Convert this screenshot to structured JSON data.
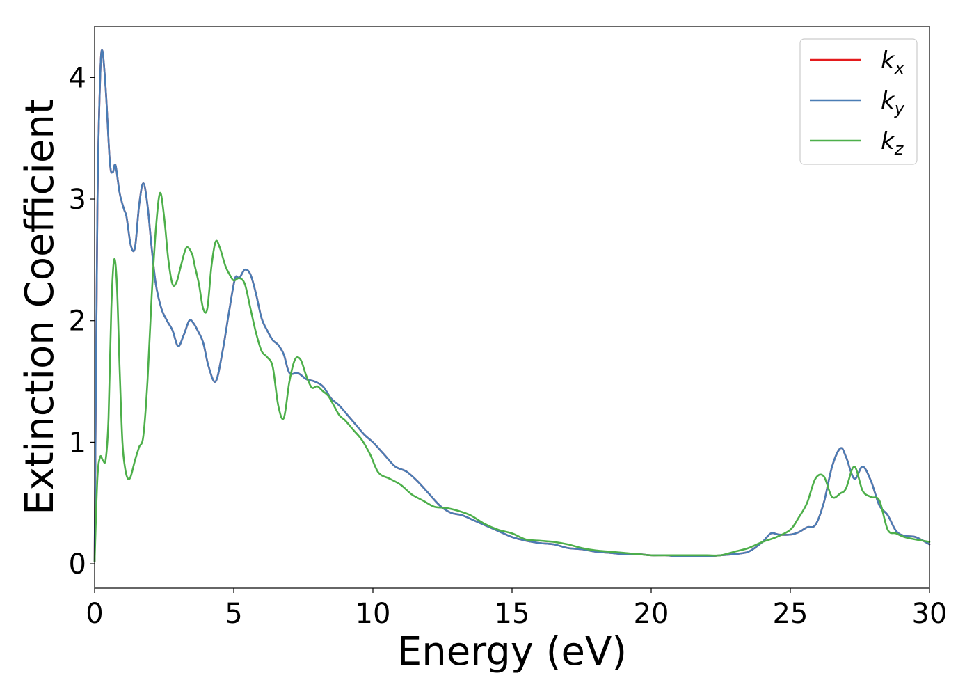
{
  "chart_data": {
    "type": "line",
    "xlabel": "Energy (eV)",
    "ylabel": "Extinction Coefficient",
    "xlim": [
      0,
      30
    ],
    "ylim": [
      -0.2,
      4.42
    ],
    "xticks": [
      0,
      5,
      10,
      15,
      20,
      25,
      30
    ],
    "xtick_labels": [
      "0",
      "5",
      "10",
      "15",
      "20",
      "25",
      "30"
    ],
    "yticks": [
      0,
      1,
      2,
      3,
      4
    ],
    "ytick_labels": [
      "0",
      "1",
      "2",
      "3",
      "4"
    ],
    "grid": false,
    "legend_position": "top-right",
    "series": [
      {
        "name": "kx",
        "label_base": "k",
        "label_sub": "x",
        "color": "#e41a1c",
        "x": [
          0,
          0.1,
          0.2,
          0.28,
          0.4,
          0.55,
          0.65,
          0.75,
          0.9,
          1.05,
          1.15,
          1.3,
          1.45,
          1.6,
          1.75,
          1.9,
          2.05,
          2.2,
          2.4,
          2.6,
          2.8,
          3.0,
          3.2,
          3.4,
          3.55,
          3.7,
          3.9,
          4.1,
          4.35,
          4.6,
          4.85,
          5.05,
          5.2,
          5.4,
          5.6,
          5.8,
          6.0,
          6.2,
          6.4,
          6.6,
          6.8,
          7.0,
          7.3,
          7.6,
          7.9,
          8.2,
          8.5,
          8.8,
          9.1,
          9.4,
          9.7,
          10.0,
          10.4,
          10.8,
          11.2,
          11.6,
          12.0,
          12.4,
          12.8,
          13.2,
          13.6,
          14.0,
          14.5,
          15.0,
          15.5,
          16.0,
          16.5,
          17.0,
          17.5,
          18.0,
          18.5,
          19.0,
          19.5,
          20.0,
          20.5,
          21.0,
          21.5,
          22.0,
          22.5,
          23.0,
          23.5,
          24.0,
          24.3,
          24.6,
          25.0,
          25.3,
          25.6,
          25.9,
          26.2,
          26.5,
          26.8,
          27.0,
          27.3,
          27.6,
          27.9,
          28.2,
          28.5,
          28.8,
          29.1,
          29.5,
          30.0
        ],
        "y": [
          0.02,
          2.9,
          4.0,
          4.22,
          3.9,
          3.3,
          3.22,
          3.28,
          3.05,
          2.92,
          2.85,
          2.62,
          2.6,
          2.95,
          3.13,
          2.95,
          2.6,
          2.3,
          2.1,
          2.0,
          1.92,
          1.79,
          1.88,
          2.0,
          1.98,
          1.92,
          1.82,
          1.62,
          1.5,
          1.75,
          2.1,
          2.35,
          2.35,
          2.42,
          2.38,
          2.22,
          2.02,
          1.92,
          1.84,
          1.8,
          1.72,
          1.57,
          1.57,
          1.52,
          1.5,
          1.46,
          1.36,
          1.3,
          1.22,
          1.14,
          1.06,
          1.0,
          0.9,
          0.8,
          0.76,
          0.68,
          0.58,
          0.48,
          0.42,
          0.4,
          0.36,
          0.32,
          0.27,
          0.22,
          0.19,
          0.17,
          0.16,
          0.13,
          0.12,
          0.1,
          0.09,
          0.08,
          0.08,
          0.07,
          0.07,
          0.06,
          0.06,
          0.06,
          0.07,
          0.08,
          0.1,
          0.18,
          0.25,
          0.24,
          0.24,
          0.26,
          0.3,
          0.32,
          0.5,
          0.8,
          0.95,
          0.88,
          0.7,
          0.8,
          0.68,
          0.48,
          0.4,
          0.27,
          0.23,
          0.22,
          0.16
        ]
      },
      {
        "name": "ky",
        "label_base": "k",
        "label_sub": "y",
        "color": "#4a7db5",
        "x": [
          0,
          0.1,
          0.2,
          0.28,
          0.4,
          0.55,
          0.65,
          0.75,
          0.9,
          1.05,
          1.15,
          1.3,
          1.45,
          1.6,
          1.75,
          1.9,
          2.05,
          2.2,
          2.4,
          2.6,
          2.8,
          3.0,
          3.2,
          3.4,
          3.55,
          3.7,
          3.9,
          4.1,
          4.35,
          4.6,
          4.85,
          5.05,
          5.2,
          5.4,
          5.6,
          5.8,
          6.0,
          6.2,
          6.4,
          6.6,
          6.8,
          7.0,
          7.3,
          7.6,
          7.9,
          8.2,
          8.5,
          8.8,
          9.1,
          9.4,
          9.7,
          10.0,
          10.4,
          10.8,
          11.2,
          11.6,
          12.0,
          12.4,
          12.8,
          13.2,
          13.6,
          14.0,
          14.5,
          15.0,
          15.5,
          16.0,
          16.5,
          17.0,
          17.5,
          18.0,
          18.5,
          19.0,
          19.5,
          20.0,
          20.5,
          21.0,
          21.5,
          22.0,
          22.5,
          23.0,
          23.5,
          24.0,
          24.3,
          24.6,
          25.0,
          25.3,
          25.6,
          25.9,
          26.2,
          26.5,
          26.8,
          27.0,
          27.3,
          27.6,
          27.9,
          28.2,
          28.5,
          28.8,
          29.1,
          29.5,
          30.0
        ],
        "y": [
          0.02,
          2.9,
          4.0,
          4.22,
          3.9,
          3.3,
          3.22,
          3.28,
          3.05,
          2.92,
          2.85,
          2.62,
          2.6,
          2.95,
          3.13,
          2.95,
          2.6,
          2.3,
          2.1,
          2.0,
          1.92,
          1.79,
          1.88,
          2.0,
          1.98,
          1.92,
          1.82,
          1.62,
          1.5,
          1.75,
          2.1,
          2.35,
          2.35,
          2.42,
          2.38,
          2.22,
          2.02,
          1.92,
          1.84,
          1.8,
          1.72,
          1.57,
          1.57,
          1.52,
          1.5,
          1.46,
          1.36,
          1.3,
          1.22,
          1.14,
          1.06,
          1.0,
          0.9,
          0.8,
          0.76,
          0.68,
          0.58,
          0.48,
          0.42,
          0.4,
          0.36,
          0.32,
          0.27,
          0.22,
          0.19,
          0.17,
          0.16,
          0.13,
          0.12,
          0.1,
          0.09,
          0.08,
          0.08,
          0.07,
          0.07,
          0.06,
          0.06,
          0.06,
          0.07,
          0.08,
          0.1,
          0.18,
          0.25,
          0.24,
          0.24,
          0.26,
          0.3,
          0.32,
          0.5,
          0.8,
          0.95,
          0.88,
          0.7,
          0.8,
          0.68,
          0.48,
          0.4,
          0.27,
          0.23,
          0.22,
          0.16
        ]
      },
      {
        "name": "kz",
        "label_base": "k",
        "label_sub": "z",
        "color": "#4daf4a",
        "x": [
          0,
          0.1,
          0.2,
          0.3,
          0.4,
          0.5,
          0.6,
          0.7,
          0.8,
          0.9,
          1.0,
          1.1,
          1.2,
          1.3,
          1.45,
          1.6,
          1.75,
          1.9,
          2.05,
          2.2,
          2.35,
          2.5,
          2.65,
          2.8,
          2.95,
          3.1,
          3.3,
          3.5,
          3.6,
          3.75,
          3.9,
          4.05,
          4.2,
          4.35,
          4.5,
          4.7,
          4.85,
          5.0,
          5.2,
          5.4,
          5.6,
          5.8,
          6.0,
          6.2,
          6.4,
          6.6,
          6.8,
          7.0,
          7.2,
          7.4,
          7.6,
          7.8,
          8.0,
          8.2,
          8.4,
          8.6,
          8.8,
          9.0,
          9.3,
          9.6,
          9.9,
          10.2,
          10.6,
          11.0,
          11.4,
          11.8,
          12.2,
          12.6,
          13.0,
          13.5,
          14.0,
          14.5,
          15.0,
          15.5,
          16.0,
          16.5,
          17.0,
          17.5,
          18.0,
          18.5,
          19.0,
          19.5,
          20.0,
          20.5,
          21.0,
          21.5,
          22.0,
          22.5,
          23.0,
          23.5,
          24.0,
          24.5,
          25.0,
          25.3,
          25.6,
          25.9,
          26.2,
          26.5,
          26.8,
          27.0,
          27.3,
          27.6,
          27.9,
          28.2,
          28.5,
          28.8,
          29.1,
          29.5,
          30.0
        ],
        "y": [
          0.02,
          0.7,
          0.88,
          0.85,
          0.86,
          1.2,
          2.1,
          2.5,
          2.3,
          1.6,
          1.0,
          0.78,
          0.7,
          0.72,
          0.85,
          0.96,
          1.05,
          1.5,
          2.2,
          2.75,
          3.05,
          2.85,
          2.5,
          2.3,
          2.32,
          2.45,
          2.6,
          2.55,
          2.45,
          2.3,
          2.1,
          2.1,
          2.45,
          2.65,
          2.6,
          2.45,
          2.38,
          2.33,
          2.35,
          2.3,
          2.1,
          1.9,
          1.75,
          1.7,
          1.62,
          1.3,
          1.2,
          1.5,
          1.68,
          1.68,
          1.55,
          1.45,
          1.46,
          1.42,
          1.38,
          1.3,
          1.22,
          1.18,
          1.1,
          1.02,
          0.9,
          0.75,
          0.7,
          0.65,
          0.57,
          0.52,
          0.47,
          0.46,
          0.44,
          0.4,
          0.33,
          0.28,
          0.25,
          0.2,
          0.19,
          0.18,
          0.16,
          0.13,
          0.11,
          0.1,
          0.09,
          0.08,
          0.07,
          0.07,
          0.07,
          0.07,
          0.07,
          0.07,
          0.1,
          0.13,
          0.18,
          0.22,
          0.28,
          0.38,
          0.5,
          0.7,
          0.72,
          0.55,
          0.58,
          0.62,
          0.8,
          0.6,
          0.55,
          0.52,
          0.28,
          0.25,
          0.22,
          0.2,
          0.18
        ]
      }
    ]
  }
}
